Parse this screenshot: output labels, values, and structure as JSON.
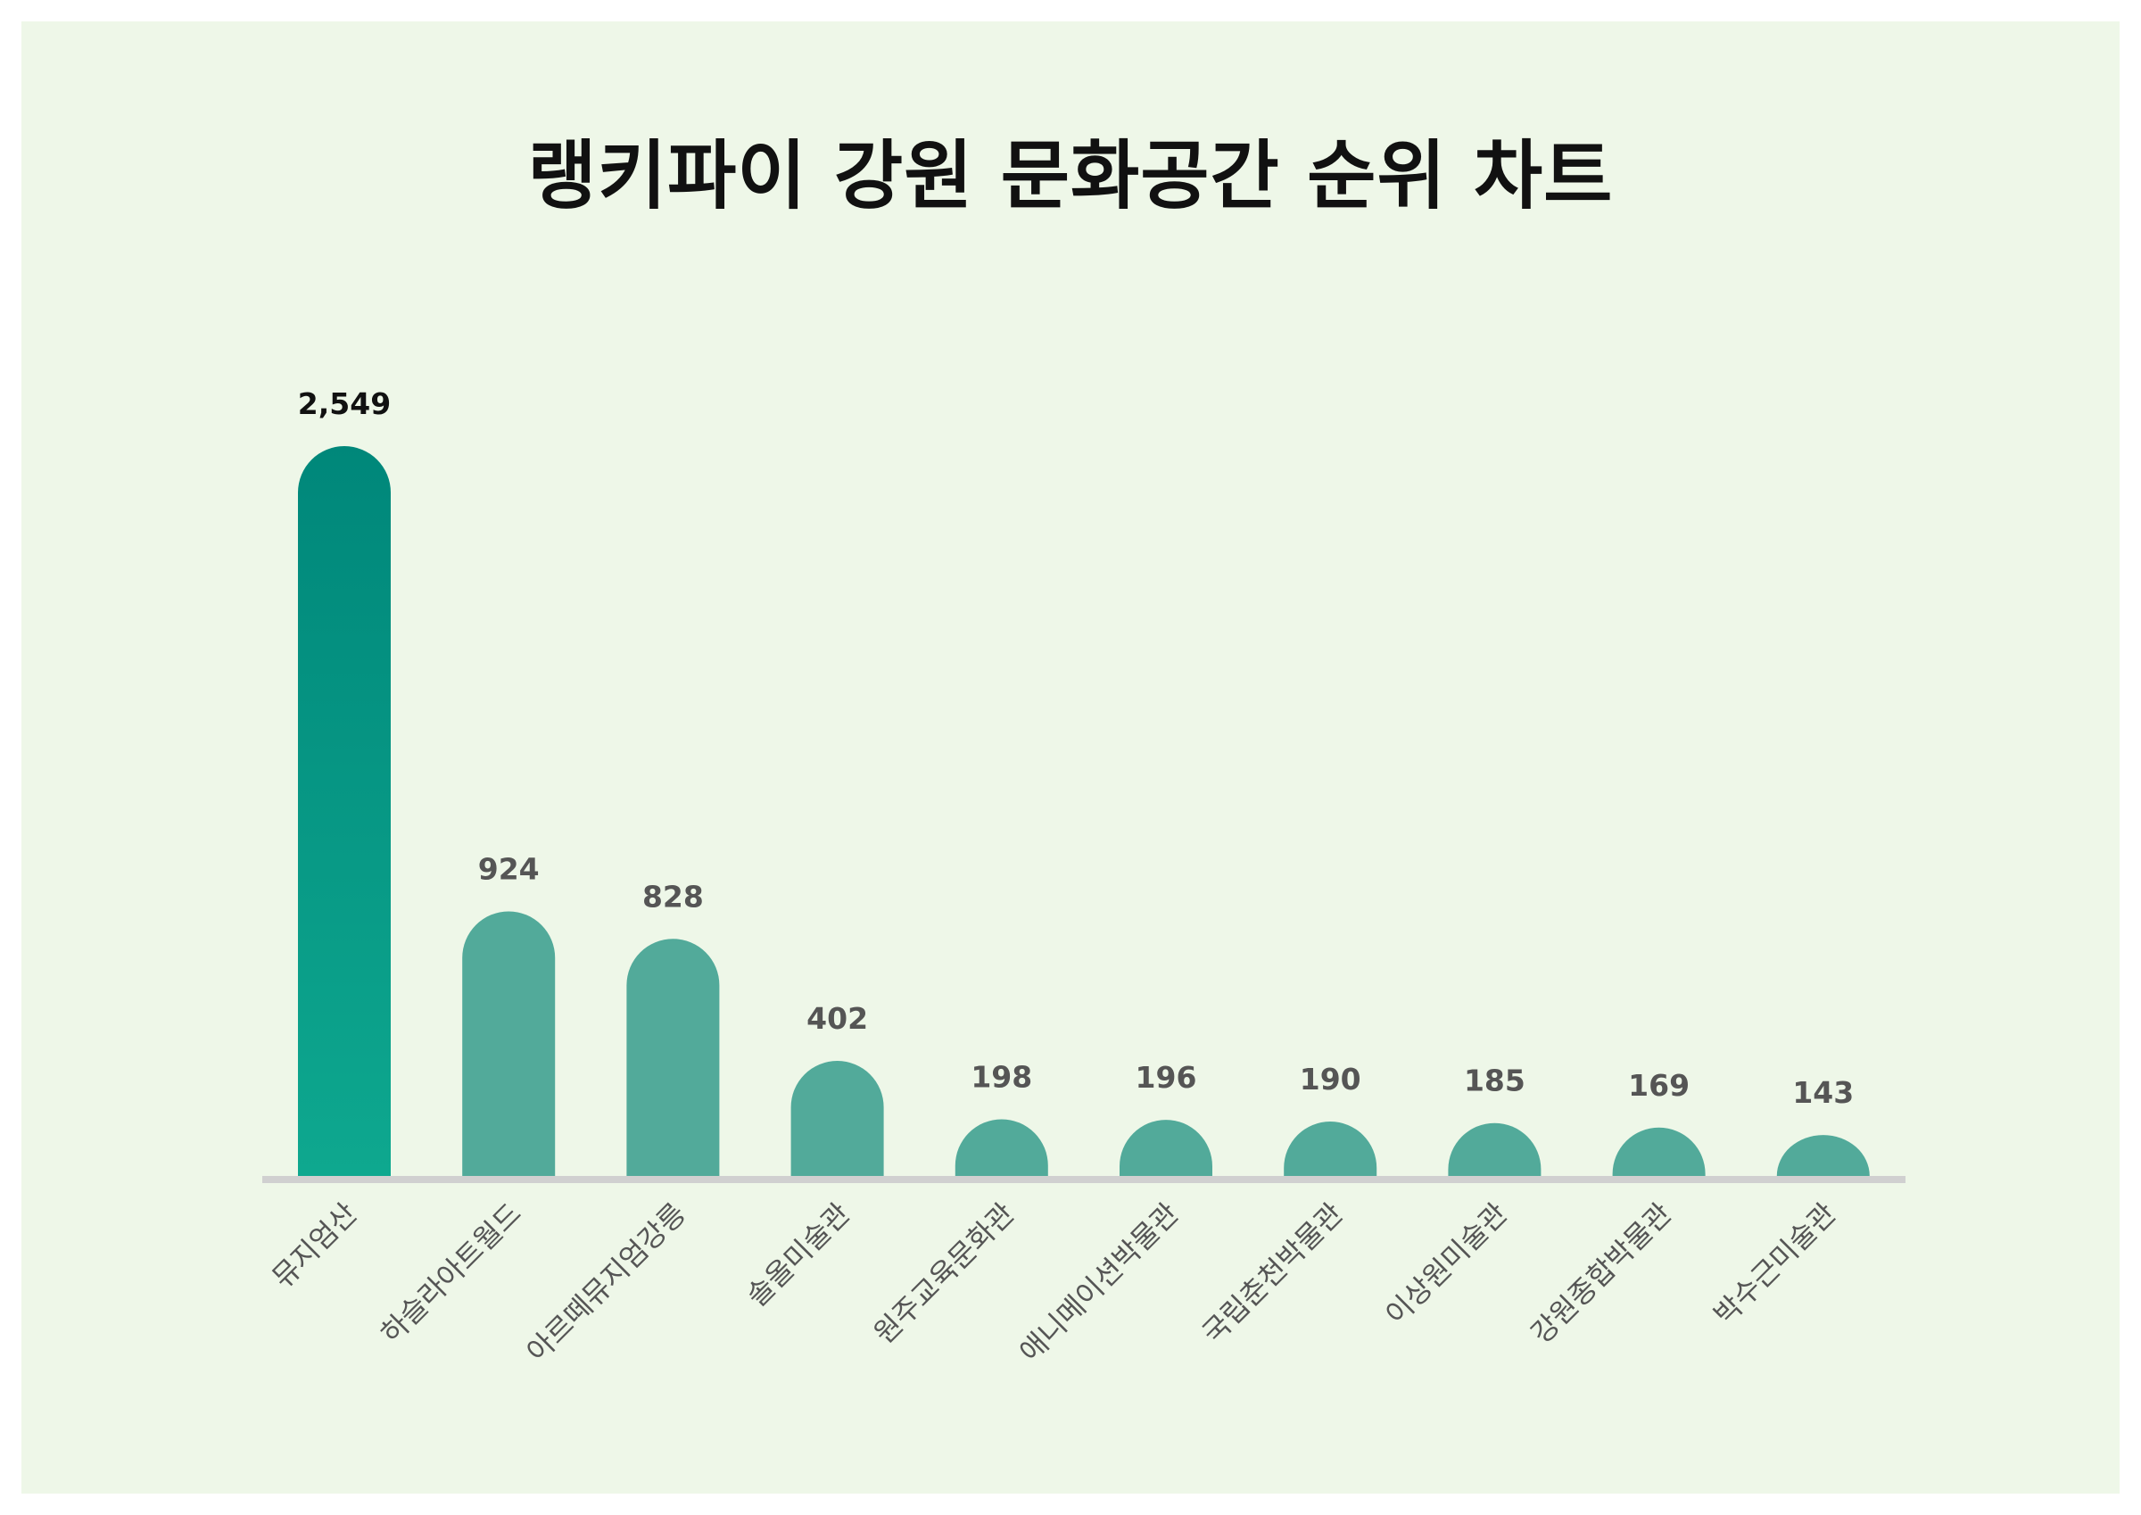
{
  "chart_data": {
    "type": "bar",
    "title": "랭키파이 강원 문화공간 순위 차트",
    "xlabel": "",
    "ylabel": "",
    "categories": [
      "뮤지엄산",
      "하슬라아트월드",
      "아르떼뮤지엄강릉",
      "솔올미술관",
      "원주교육문화관",
      "애니메이션박물관",
      "국립춘천박물관",
      "이상원미술관",
      "강원종합박물관",
      "박수근미술관"
    ],
    "values": [
      2549,
      924,
      828,
      402,
      198,
      196,
      190,
      185,
      169,
      143
    ],
    "value_labels": [
      "2,549",
      "924",
      "828",
      "402",
      "198",
      "196",
      "190",
      "185",
      "169",
      "143"
    ],
    "ylim": [
      0,
      2549
    ],
    "grid": false,
    "legend": "none"
  },
  "colors": {
    "background": "#eef7e8",
    "top_bar_top": "#00877a",
    "top_bar_bottom": "#0ea88f",
    "bar": "#52aa9a",
    "top_label": "#111111",
    "label": "#555555",
    "baseline": "#d0d0d0"
  }
}
